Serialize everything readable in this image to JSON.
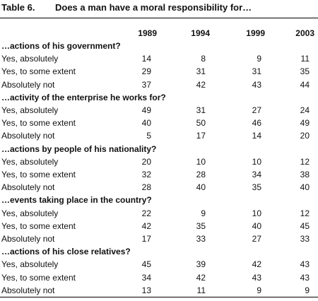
{
  "header": {
    "label": "Table 6.",
    "title": "Does a man have a moral responsibility for…"
  },
  "table": {
    "columns": [
      "1989",
      "1994",
      "1999",
      "2003"
    ],
    "sections": [
      {
        "title": "…actions of his government?",
        "rows": [
          {
            "label": "Yes, absolutely",
            "values": [
              14,
              8,
              9,
              11
            ]
          },
          {
            "label": "Yes, to some extent",
            "values": [
              29,
              31,
              31,
              35
            ]
          },
          {
            "label": "Absolutely not",
            "values": [
              37,
              42,
              43,
              44
            ]
          }
        ]
      },
      {
        "title": "…activity of the enterprise he works for?",
        "rows": [
          {
            "label": "Yes, absolutely",
            "values": [
              49,
              31,
              27,
              24
            ]
          },
          {
            "label": "Yes, to some extent",
            "values": [
              40,
              50,
              46,
              49
            ]
          },
          {
            "label": "Absolutely not",
            "values": [
              5,
              17,
              14,
              20
            ]
          }
        ]
      },
      {
        "title": "…actions by people of his nationality?",
        "rows": [
          {
            "label": "Yes, absolutely",
            "values": [
              20,
              10,
              10,
              12
            ]
          },
          {
            "label": "Yes, to some extent",
            "values": [
              32,
              28,
              34,
              38
            ]
          },
          {
            "label": "Absolutely not",
            "values": [
              28,
              40,
              35,
              40
            ]
          }
        ]
      },
      {
        "title": "…events taking place in the country?",
        "rows": [
          {
            "label": "Yes, absolutely",
            "values": [
              22,
              9,
              10,
              12
            ]
          },
          {
            "label": "Yes, to some extent",
            "values": [
              42,
              35,
              40,
              45
            ]
          },
          {
            "label": "Absolutely not",
            "values": [
              17,
              33,
              27,
              33
            ]
          }
        ]
      },
      {
        "title": "…actions of his close relatives?",
        "rows": [
          {
            "label": "Yes, absolutely",
            "values": [
              45,
              39,
              42,
              43
            ]
          },
          {
            "label": "Yes, to some extent",
            "values": [
              34,
              42,
              43,
              43
            ]
          },
          {
            "label": "Absolutely not",
            "values": [
              13,
              11,
              9,
              9
            ]
          }
        ]
      }
    ]
  }
}
